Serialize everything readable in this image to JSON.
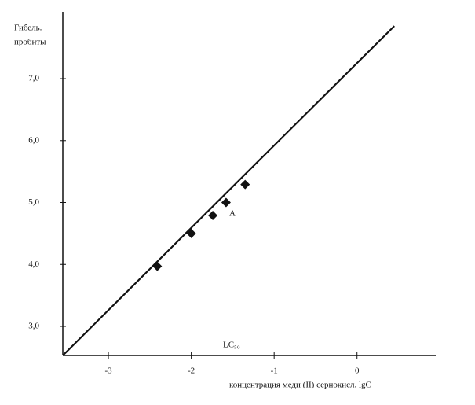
{
  "chart_data": {
    "type": "scatter",
    "y_label_lines": [
      "Гибель.",
      "пробиты"
    ],
    "x_label": "концентрация меди  (II) сернокисл. lgC",
    "annotations": [
      "A",
      "LC₅₀"
    ],
    "x": [
      -2.41,
      -2.0,
      -1.74,
      -1.58,
      -1.35
    ],
    "values": [
      3.97,
      4.5,
      4.79,
      5.0,
      5.29
    ],
    "color": "#111111",
    "fit_line": {
      "x": [
        -3.55,
        0.45
      ],
      "values": [
        2.53,
        7.85
      ]
    },
    "xlim": [
      -3.55,
      0.95
    ],
    "ylim": [
      2.53,
      8.08
    ],
    "xticks": [
      -3,
      -2,
      -1,
      0
    ],
    "yticks": [
      {
        "value": 3,
        "label": "3,0"
      },
      {
        "value": 4,
        "label": "4,0"
      },
      {
        "value": 5,
        "label": "5,0"
      },
      {
        "value": 6,
        "label": "6,0"
      },
      {
        "value": 7,
        "label": "7,0"
      }
    ]
  }
}
